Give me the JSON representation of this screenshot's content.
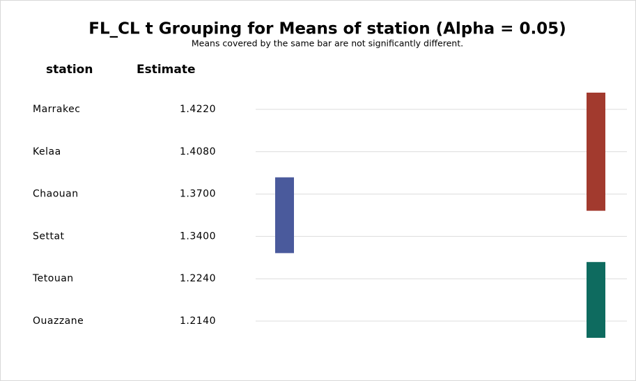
{
  "chart_data": {
    "type": "grouping",
    "title": "FL_CL t Grouping for Means of station (Alpha = 0.05)",
    "subtitle": "Means covered by the same bar are not significantly different.",
    "column_headers": [
      "station",
      "Estimate"
    ],
    "categories": [
      "Marrakec",
      "Kelaa",
      "Chaouan",
      "Settat",
      "Tetouan",
      "Ouazzane"
    ],
    "estimates": [
      "1.4220",
      "1.4080",
      "1.3700",
      "1.3400",
      "1.2240",
      "1.2140"
    ],
    "groups": [
      {
        "color": "#a23a2e",
        "rows": [
          0,
          2
        ]
      },
      {
        "color": "#4a5a9c",
        "rows": [
          2,
          3
        ]
      },
      {
        "color": "#0e6b5f",
        "rows": [
          4,
          5
        ]
      }
    ]
  }
}
